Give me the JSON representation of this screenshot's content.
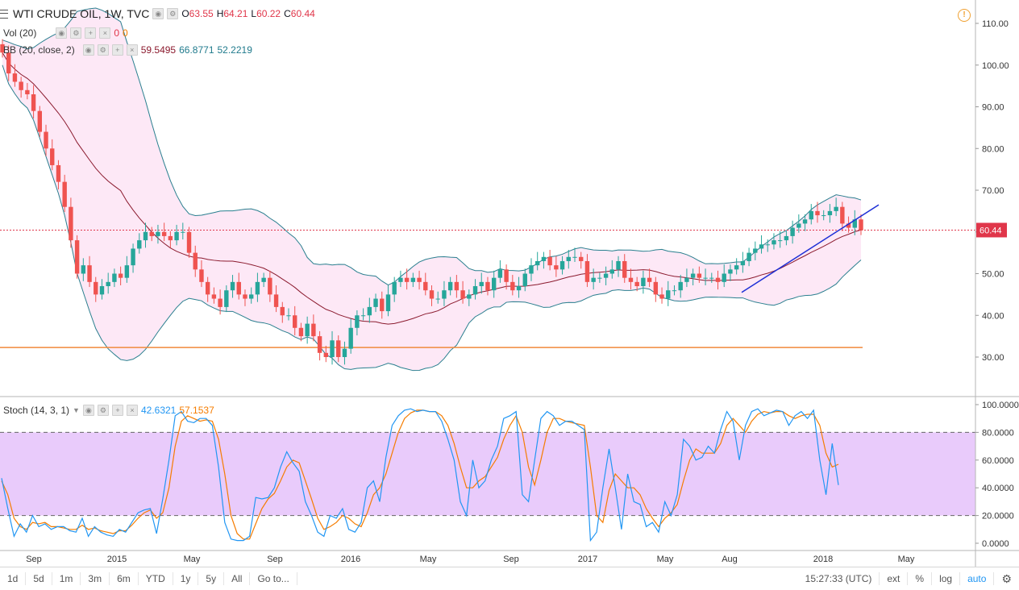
{
  "header": {
    "symbol_title": "WTI CRUDE OIL, 1W, TVC",
    "open_label": "O",
    "open": "63.55",
    "high_label": "H",
    "high": "64.21",
    "low_label": "L",
    "low": "60.22",
    "close_label": "C",
    "close": "60.44"
  },
  "volume": {
    "label": "Vol (20)",
    "v1": "0",
    "v2": "0"
  },
  "bb": {
    "label": "BB (20, close, 2)",
    "mid": "59.5495",
    "upper": "66.8771",
    "lower": "52.2219"
  },
  "stoch": {
    "label": "Stoch (14, 3, 1)",
    "k": "42.6321",
    "d": "57.1537"
  },
  "price_axis": [
    "110.00",
    "100.00",
    "90.00",
    "80.00",
    "70.00",
    "60.00",
    "50.00",
    "40.00",
    "30.00"
  ],
  "stoch_axis": [
    "100.0000",
    "80.0000",
    "60.0000",
    "40.0000",
    "20.0000",
    "0.0000"
  ],
  "time_axis": [
    "Sep",
    "2015",
    "May",
    "Sep",
    "2016",
    "May",
    "Sep",
    "2017",
    "May",
    "Aug",
    "2018",
    "May"
  ],
  "last_price": "60.44",
  "toolbar": {
    "ranges": [
      "1d",
      "5d",
      "1m",
      "3m",
      "6m",
      "YTD",
      "1y",
      "5y",
      "All"
    ],
    "goto": "Go to...",
    "time": "15:27:33 (UTC)",
    "ext": "ext",
    "percent": "%",
    "log": "log",
    "auto": "auto"
  },
  "colors": {
    "up": "#26a69a",
    "down": "#ef5350",
    "band_fill": "#fde8f6",
    "stoch_fill": "#e9cbfb",
    "k": "#2196f3",
    "d": "#f57c00",
    "trend": "#1d2fd6",
    "support": "#f08a3c"
  },
  "chart_data": {
    "type": "candlestick",
    "price_ylim": [
      24,
      114
    ],
    "stoch_ylim": [
      0,
      100
    ],
    "closes": [
      103,
      98,
      96,
      94,
      93,
      89,
      84,
      80,
      76,
      72,
      66,
      58,
      50,
      52,
      48,
      45,
      47,
      48,
      50,
      49,
      52,
      56,
      58,
      60,
      59,
      60,
      59,
      58,
      60,
      60,
      55,
      51,
      48,
      45,
      44,
      42,
      46,
      48,
      45,
      44,
      45,
      48,
      49,
      45,
      42,
      40,
      40,
      37,
      35,
      38,
      35,
      31,
      30,
      34,
      30,
      32,
      37,
      40,
      40,
      42,
      44,
      41,
      45,
      48,
      49,
      48,
      49,
      48,
      46,
      44,
      44,
      46,
      48,
      46,
      44,
      45,
      47,
      48,
      46,
      49,
      51,
      48,
      46,
      47,
      50,
      52,
      53,
      54,
      52,
      51,
      53,
      54,
      54,
      53,
      48,
      49,
      49,
      50,
      51,
      53,
      49,
      48,
      47,
      49,
      48,
      45,
      44,
      46,
      46,
      48,
      49,
      50,
      49,
      49,
      49,
      48,
      50,
      51,
      52,
      53,
      55,
      56,
      57,
      57,
      58,
      58,
      59,
      61,
      62,
      63,
      65,
      64,
      64,
      65,
      66,
      62,
      61,
      63,
      60.44
    ],
    "stoch_k": [
      47,
      25,
      5,
      14,
      8,
      20,
      12,
      14,
      10,
      12,
      12,
      9,
      8,
      18,
      5,
      12,
      8,
      6,
      5,
      10,
      8,
      15,
      22,
      24,
      25,
      7,
      32,
      60,
      92,
      95,
      88,
      87,
      90,
      90,
      85,
      55,
      15,
      3,
      2,
      2,
      5,
      33,
      32,
      33,
      40,
      55,
      66,
      58,
      52,
      30,
      20,
      8,
      5,
      20,
      18,
      25,
      10,
      8,
      15,
      40,
      45,
      30,
      62,
      85,
      92,
      96,
      97,
      95,
      96,
      95,
      95,
      88,
      75,
      60,
      30,
      20,
      60,
      40,
      45,
      60,
      70,
      90,
      92,
      95,
      35,
      30,
      60,
      90,
      95,
      92,
      85,
      88,
      88,
      85,
      82,
      2,
      8,
      40,
      68,
      40,
      10,
      50,
      30,
      28,
      12,
      15,
      8,
      30,
      20,
      35,
      75,
      70,
      60,
      62,
      70,
      65,
      82,
      95,
      88,
      60,
      85,
      95,
      97,
      92,
      94,
      96,
      95,
      85,
      92,
      95,
      90,
      96,
      60,
      35,
      72,
      42
    ],
    "stoch_d": [
      45,
      35,
      18,
      12,
      10,
      15,
      14,
      15,
      12,
      12,
      11,
      10,
      10,
      13,
      10,
      11,
      9,
      8,
      7,
      9,
      9,
      13,
      18,
      22,
      24,
      18,
      22,
      40,
      70,
      88,
      92,
      90,
      88,
      89,
      88,
      75,
      50,
      20,
      7,
      3,
      3,
      14,
      25,
      32,
      36,
      45,
      55,
      60,
      58,
      45,
      32,
      18,
      10,
      12,
      15,
      20,
      18,
      14,
      12,
      22,
      35,
      40,
      50,
      65,
      80,
      90,
      94,
      96,
      96,
      95,
      95,
      92,
      85,
      72,
      55,
      40,
      40,
      45,
      48,
      55,
      62,
      75,
      85,
      92,
      80,
      55,
      42,
      60,
      80,
      90,
      90,
      88,
      87,
      86,
      85,
      55,
      20,
      15,
      38,
      50,
      45,
      40,
      40,
      35,
      25,
      18,
      12,
      18,
      22,
      28,
      45,
      60,
      68,
      65,
      65,
      65,
      72,
      85,
      90,
      85,
      80,
      88,
      93,
      95,
      94,
      95,
      95,
      92,
      90,
      92,
      93,
      93,
      85,
      65,
      55,
      57
    ]
  }
}
